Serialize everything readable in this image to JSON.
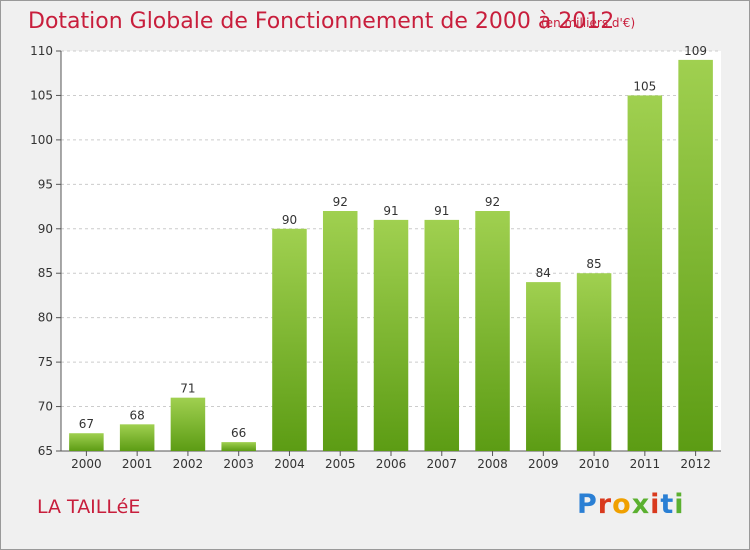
{
  "header": {
    "title": "Dotation Globale de Fonctionnement de 2000 à 2012",
    "unit_note": "(en milliers d'€)"
  },
  "footer": {
    "commune": "LA TAILLéE",
    "logo_letters": [
      "P",
      "r",
      "o",
      "x",
      "i",
      "t",
      "i"
    ]
  },
  "colors": {
    "accent": "#c81e3c",
    "bar_top": "#a0d050",
    "bar_bottom": "#5c9c14",
    "grid": "#cccccc"
  },
  "chart_data": {
    "type": "bar",
    "title": "Dotation Globale de Fonctionnement de 2000 à 2012",
    "subtitle": "(en milliers d'€)",
    "xlabel": "",
    "ylabel": "",
    "categories": [
      "2000",
      "2001",
      "2002",
      "2003",
      "2004",
      "2005",
      "2006",
      "2007",
      "2008",
      "2009",
      "2010",
      "2011",
      "2012"
    ],
    "values": [
      67,
      68,
      71,
      66,
      90,
      92,
      91,
      91,
      92,
      84,
      85,
      105,
      109
    ],
    "ylim": [
      65,
      110
    ],
    "yticks": [
      65,
      70,
      75,
      80,
      85,
      90,
      95,
      100,
      105,
      110
    ],
    "grid": "horizontal dashed",
    "legend": "none"
  }
}
